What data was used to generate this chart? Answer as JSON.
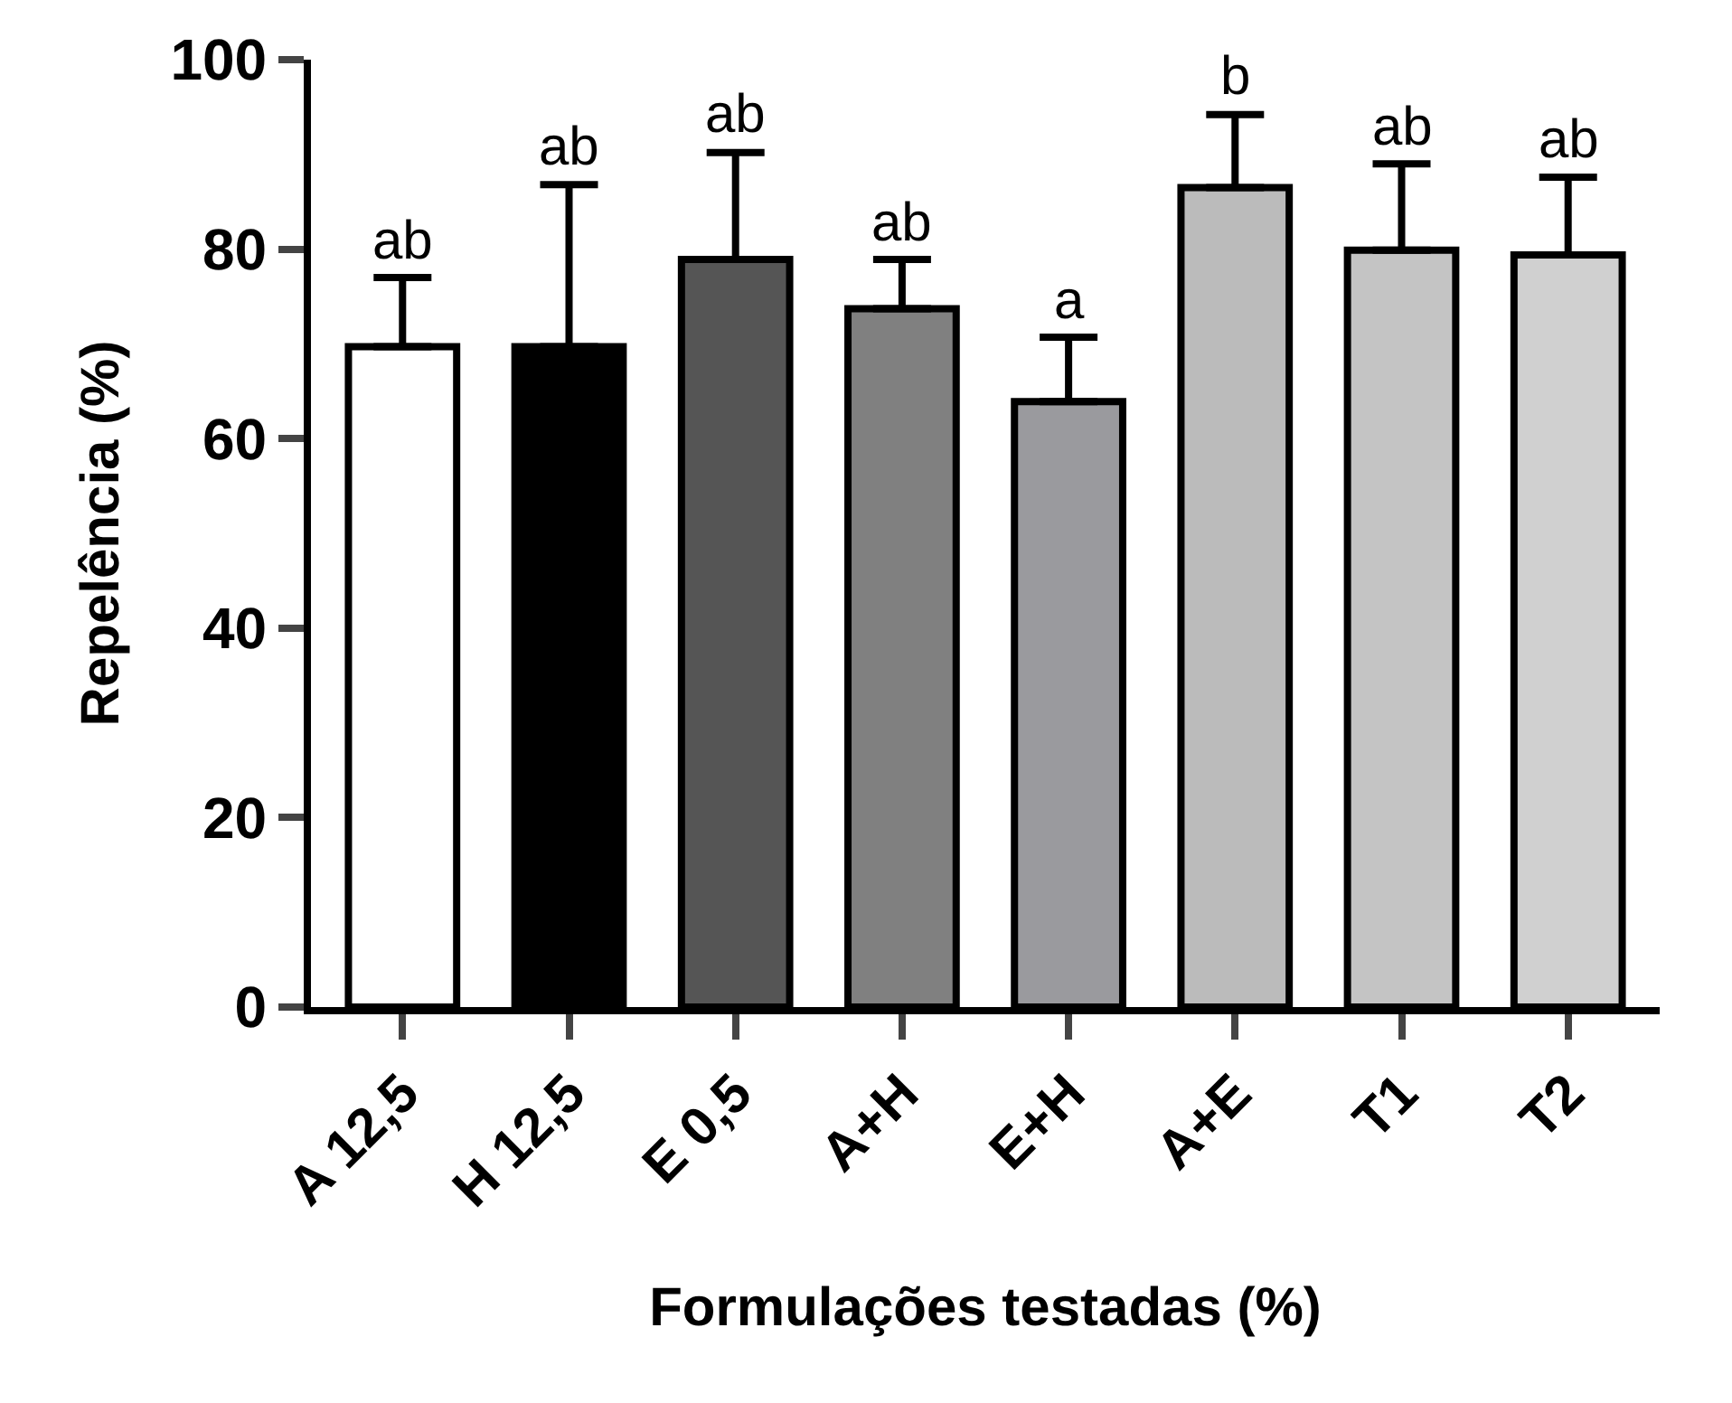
{
  "chart_data": {
    "type": "bar",
    "xlabel": "Formulações testadas (%)",
    "ylabel": "Repelência (%)",
    "categories": [
      "A 12,5",
      "H 12,5",
      "E 0,5",
      "A+H",
      "E+H",
      "A+E",
      "T1",
      "T2"
    ],
    "values": [
      69.7,
      69.7,
      78.9,
      73.7,
      63.9,
      86.5,
      79.9,
      79.4
    ],
    "colors": [
      "#ffffff",
      "#000000",
      "#555555",
      "#808080",
      "#9a9a9e",
      "#bbbbbb",
      "#c4c4c4",
      "#d0d0d0"
    ],
    "errors": [
      [
        69.7,
        77.0
      ],
      [
        69.7,
        86.8
      ],
      [
        78.9,
        90.2
      ],
      [
        73.7,
        78.9
      ],
      [
        63.9,
        70.7
      ],
      [
        86.5,
        94.2
      ],
      [
        79.9,
        89.0
      ],
      [
        79.4,
        87.6
      ]
    ],
    "ylim": [
      0,
      100
    ],
    "yticks": [
      0,
      20,
      40,
      60,
      80,
      100
    ],
    "grid": false,
    "annotations": [
      {
        "text": "ab",
        "x": "A 12,5",
        "y": 77.0
      },
      {
        "text": "ab",
        "x": "H 12,5",
        "y": 86.8
      },
      {
        "text": "ab",
        "x": "E 0,5",
        "y": 90.2
      },
      {
        "text": "ab",
        "x": "A+H",
        "y": 78.9
      },
      {
        "text": "a",
        "x": "E+H",
        "y": 70.7
      },
      {
        "text": "b",
        "x": "A+E",
        "y": 94.2
      },
      {
        "text": "ab",
        "x": "T1",
        "y": 89.0
      },
      {
        "text": "ab",
        "x": "T2",
        "y": 87.6
      }
    ]
  }
}
